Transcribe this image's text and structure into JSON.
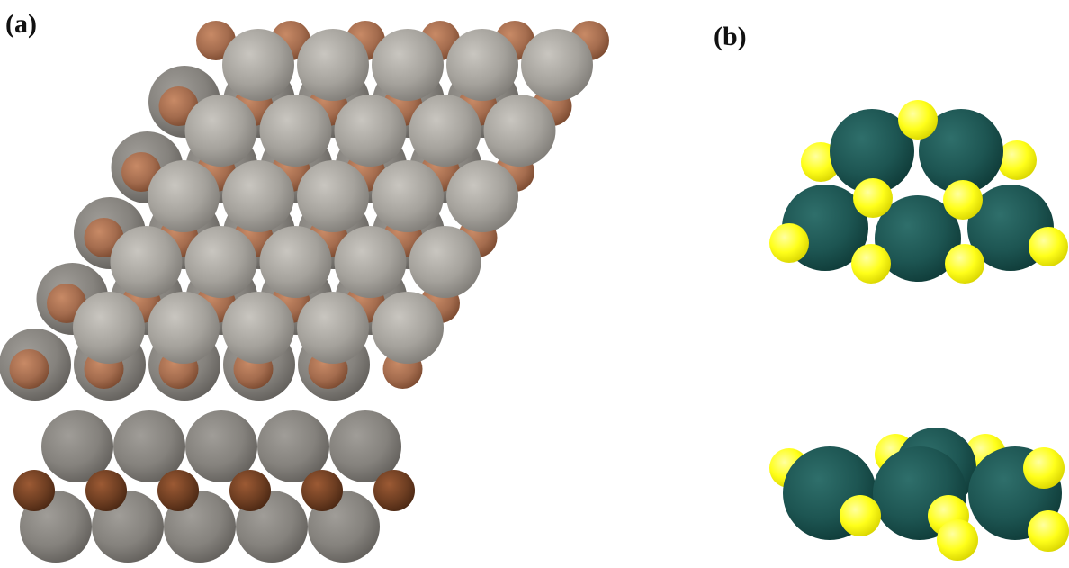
{
  "panels": {
    "a": {
      "label": "(a)"
    },
    "b": {
      "label": "(b)"
    }
  },
  "colors": {
    "grey_atom": "#a5a29c",
    "grey_atom_dark": "#7f7c77",
    "brown_atom": "#a46c4e",
    "brown_atom_dark": "#6e3e22",
    "teal_atom": "#1d5552",
    "teal_atom_dark": "#0f3b38",
    "yellow_atom": "#ffff1a",
    "yellow_atom_dark": "#d8d400",
    "background": "#ffffff"
  }
}
